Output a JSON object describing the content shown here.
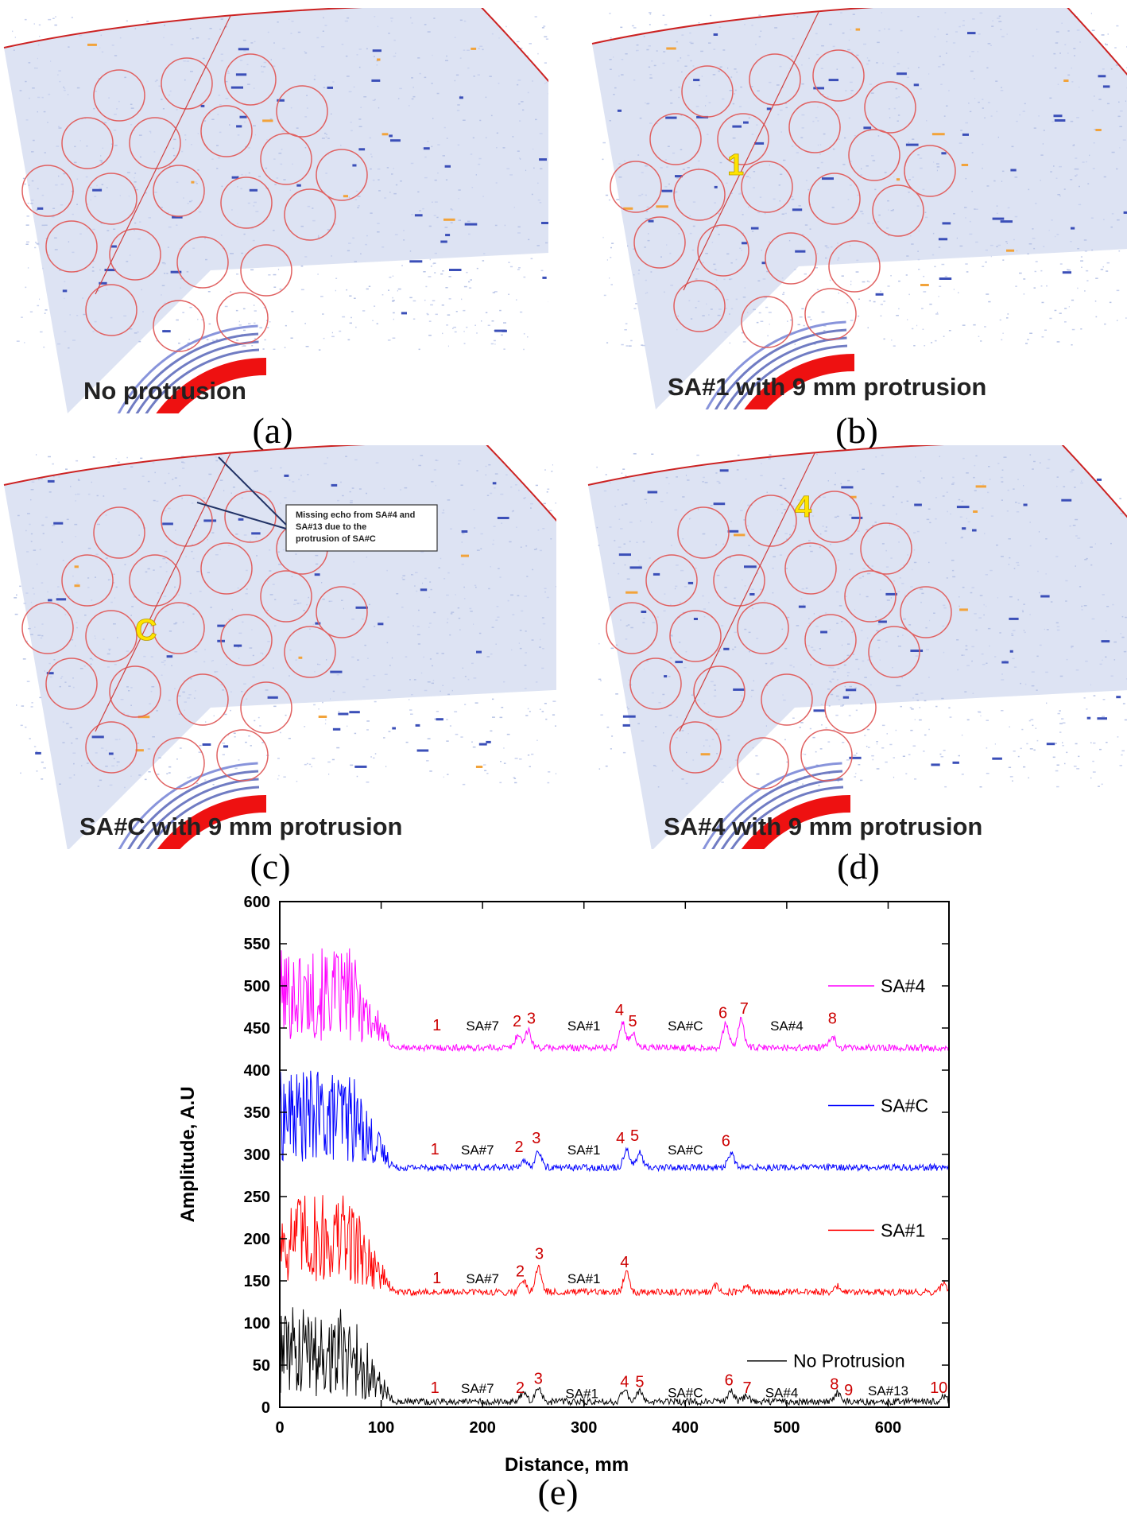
{
  "panels": [
    {
      "id": "a",
      "caption": "(a)",
      "label": "No protrusion",
      "marker": "",
      "annotation": ""
    },
    {
      "id": "b",
      "caption": "(b)",
      "label": "SA#1 with 9 mm protrusion",
      "marker": "1",
      "annotation": ""
    },
    {
      "id": "c",
      "caption": "(c)",
      "label": "SA#C with 9 mm protrusion",
      "marker": "C",
      "annotation": "Missing echo from SA#4 and SA#13 due to the protrusion of SA#C"
    },
    {
      "id": "d",
      "caption": "(d)",
      "label": "SA#4 with 9 mm protrusion",
      "marker": "4",
      "annotation": ""
    }
  ],
  "caption_e": "(e)",
  "colors": {
    "SA#4": "#ff00ff",
    "SA#C": "#0000ff",
    "SA#1": "#ff0000",
    "No Protrusion": "#000000",
    "peak_label": "#cc0000",
    "circle": "#e06060"
  },
  "chart_data": {
    "type": "line",
    "title": "",
    "xlabel": "Distance, mm",
    "ylabel": "Amplitude, A.U",
    "xlim": [
      0,
      660
    ],
    "ylim": [
      0,
      600
    ],
    "xticks": [
      "0",
      "100",
      "200",
      "300",
      "400",
      "500",
      "600"
    ],
    "yticks": [
      "0",
      "50",
      "100",
      "150",
      "200",
      "250",
      "300",
      "350",
      "400",
      "450",
      "500",
      "550",
      "600"
    ],
    "legend_position": "right, beside each trace",
    "series": [
      {
        "name": "SA#4",
        "baseline": 425,
        "near_field_level": 490,
        "peaks": [
          {
            "x": 235,
            "y": 440
          },
          {
            "x": 245,
            "y": 445
          },
          {
            "x": 338,
            "y": 455
          },
          {
            "x": 348,
            "y": 442
          },
          {
            "x": 440,
            "y": 453
          },
          {
            "x": 455,
            "y": 458
          },
          {
            "x": 545,
            "y": 438
          }
        ],
        "annotations": [
          {
            "text": "1",
            "x": 155,
            "y": 447,
            "kind": "peak"
          },
          {
            "text": "SA#7",
            "x": 200,
            "y": 447,
            "kind": "region"
          },
          {
            "text": "2",
            "x": 234,
            "y": 452,
            "kind": "peak"
          },
          {
            "text": "3",
            "x": 248,
            "y": 455,
            "kind": "peak"
          },
          {
            "text": "SA#1",
            "x": 300,
            "y": 447,
            "kind": "region"
          },
          {
            "text": "4",
            "x": 335,
            "y": 465,
            "kind": "peak"
          },
          {
            "text": "5",
            "x": 348,
            "y": 452,
            "kind": "peak"
          },
          {
            "text": "SA#C",
            "x": 400,
            "y": 447,
            "kind": "region"
          },
          {
            "text": "6",
            "x": 437,
            "y": 462,
            "kind": "peak"
          },
          {
            "text": "7",
            "x": 458,
            "y": 467,
            "kind": "peak"
          },
          {
            "text": "SA#4",
            "x": 500,
            "y": 447,
            "kind": "region"
          },
          {
            "text": "8",
            "x": 545,
            "y": 455,
            "kind": "peak"
          }
        ]
      },
      {
        "name": "SA#C",
        "baseline": 283,
        "near_field_level": 345,
        "peaks": [
          {
            "x": 240,
            "y": 290
          },
          {
            "x": 255,
            "y": 302
          },
          {
            "x": 342,
            "y": 305
          },
          {
            "x": 355,
            "y": 300
          },
          {
            "x": 445,
            "y": 300
          }
        ],
        "annotations": [
          {
            "text": "1",
            "x": 153,
            "y": 300,
            "kind": "peak"
          },
          {
            "text": "SA#7",
            "x": 195,
            "y": 300,
            "kind": "region"
          },
          {
            "text": "2",
            "x": 236,
            "y": 303,
            "kind": "peak"
          },
          {
            "text": "3",
            "x": 253,
            "y": 313,
            "kind": "peak"
          },
          {
            "text": "SA#1",
            "x": 300,
            "y": 300,
            "kind": "region"
          },
          {
            "text": "4",
            "x": 336,
            "y": 313,
            "kind": "peak"
          },
          {
            "text": "5",
            "x": 350,
            "y": 316,
            "kind": "peak"
          },
          {
            "text": "SA#C",
            "x": 400,
            "y": 300,
            "kind": "region"
          },
          {
            "text": "6",
            "x": 440,
            "y": 310,
            "kind": "peak"
          }
        ]
      },
      {
        "name": "SA#1",
        "baseline": 135,
        "near_field_level": 200,
        "peaks": [
          {
            "x": 240,
            "y": 150
          },
          {
            "x": 255,
            "y": 165
          },
          {
            "x": 342,
            "y": 160
          },
          {
            "x": 430,
            "y": 143
          },
          {
            "x": 460,
            "y": 142
          },
          {
            "x": 550,
            "y": 142
          },
          {
            "x": 655,
            "y": 145
          }
        ],
        "annotations": [
          {
            "text": "1",
            "x": 155,
            "y": 147,
            "kind": "peak"
          },
          {
            "text": "SA#7",
            "x": 200,
            "y": 147,
            "kind": "region"
          },
          {
            "text": "2",
            "x": 237,
            "y": 155,
            "kind": "peak"
          },
          {
            "text": "3",
            "x": 256,
            "y": 176,
            "kind": "peak"
          },
          {
            "text": "SA#1",
            "x": 300,
            "y": 147,
            "kind": "region"
          },
          {
            "text": "4",
            "x": 340,
            "y": 166,
            "kind": "peak"
          }
        ]
      },
      {
        "name": "No Protrusion",
        "baseline": 5,
        "near_field_level": 65,
        "peaks": [
          {
            "x": 240,
            "y": 15
          },
          {
            "x": 255,
            "y": 22
          },
          {
            "x": 340,
            "y": 20
          },
          {
            "x": 355,
            "y": 18
          },
          {
            "x": 445,
            "y": 18
          },
          {
            "x": 460,
            "y": 12
          },
          {
            "x": 550,
            "y": 15
          },
          {
            "x": 655,
            "y": 12
          }
        ],
        "annotations": [
          {
            "text": "1",
            "x": 153,
            "y": 17,
            "kind": "peak"
          },
          {
            "text": "SA#7",
            "x": 195,
            "y": 17,
            "kind": "region"
          },
          {
            "text": "2",
            "x": 237,
            "y": 17,
            "kind": "peak"
          },
          {
            "text": "3",
            "x": 255,
            "y": 28,
            "kind": "peak"
          },
          {
            "text": "SA#1",
            "x": 298,
            "y": 11,
            "kind": "region"
          },
          {
            "text": "4",
            "x": 340,
            "y": 24,
            "kind": "peak"
          },
          {
            "text": "5",
            "x": 355,
            "y": 24,
            "kind": "peak"
          },
          {
            "text": "SA#C",
            "x": 400,
            "y": 12,
            "kind": "region"
          },
          {
            "text": "6",
            "x": 443,
            "y": 26,
            "kind": "peak"
          },
          {
            "text": "7",
            "x": 461,
            "y": 17,
            "kind": "peak"
          },
          {
            "text": "SA#4",
            "x": 495,
            "y": 12,
            "kind": "region"
          },
          {
            "text": "8",
            "x": 547,
            "y": 21,
            "kind": "peak"
          },
          {
            "text": "9",
            "x": 561,
            "y": 14,
            "kind": "peak"
          },
          {
            "text": "SA#13",
            "x": 600,
            "y": 14,
            "kind": "region"
          },
          {
            "text": "10",
            "x": 650,
            "y": 17,
            "kind": "peak"
          }
        ]
      }
    ]
  }
}
